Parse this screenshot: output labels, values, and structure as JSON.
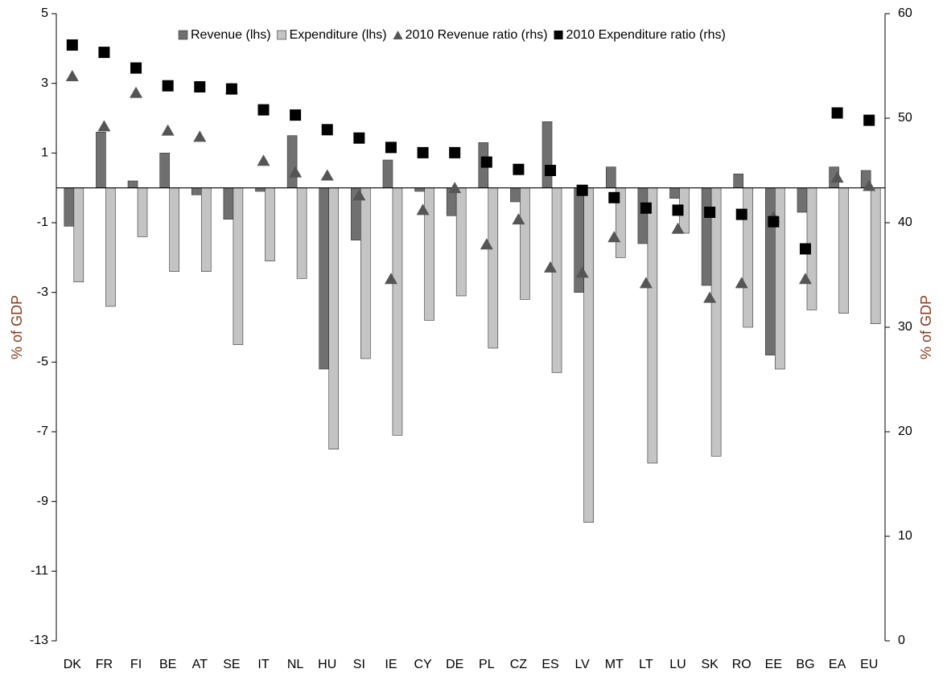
{
  "chart_data": {
    "type": "bar",
    "y_label": "% of GDP",
    "y2_label": "% of GDP",
    "categories": [
      "DK",
      "FR",
      "FI",
      "BE",
      "AT",
      "SE",
      "IT",
      "NL",
      "HU",
      "SI",
      "IE",
      "CY",
      "DE",
      "PL",
      "CZ",
      "ES",
      "LV",
      "MT",
      "LT",
      "LU",
      "SK",
      "RO",
      "EE",
      "BG",
      "EA",
      "EU"
    ],
    "series": [
      {
        "name": "Revenue (lhs)",
        "type": "bar",
        "color": "#707070",
        "values": [
          -1.1,
          1.6,
          0.2,
          1.0,
          -0.2,
          -0.9,
          -0.1,
          1.5,
          -5.2,
          -1.5,
          0.8,
          -0.1,
          -0.8,
          1.3,
          -0.4,
          1.9,
          -3.0,
          0.6,
          -1.6,
          -0.3,
          -2.8,
          0.4,
          -4.8,
          -0.7,
          0.6,
          0.5
        ]
      },
      {
        "name": "Expenditure (lhs)",
        "type": "bar",
        "color": "#c4c4c4",
        "values": [
          -2.7,
          -3.4,
          -1.4,
          -2.4,
          -2.4,
          -4.5,
          -2.1,
          -2.6,
          -7.5,
          -4.9,
          -7.1,
          -3.8,
          -3.1,
          -4.6,
          -3.2,
          -5.3,
          -9.6,
          -2.0,
          -7.9,
          -1.3,
          -7.7,
          -4.0,
          -5.2,
          -3.5,
          -3.6,
          -3.9
        ]
      },
      {
        "name": "2010 Revenue ratio (rhs)",
        "type": "scatter",
        "marker": "triangle",
        "axis": "y2",
        "color": "#555555",
        "values": [
          54.0,
          49.2,
          52.4,
          48.8,
          48.2,
          52.8,
          45.9,
          44.8,
          44.5,
          42.6,
          34.6,
          41.2,
          43.3,
          37.9,
          40.3,
          35.7,
          35.2,
          38.6,
          34.2,
          39.4,
          32.8,
          34.2,
          40.5,
          34.6,
          44.3,
          43.5
        ]
      },
      {
        "name": "2010 Expenditure ratio (rhs)",
        "type": "scatter",
        "marker": "square",
        "axis": "y2",
        "color": "#000000",
        "values": [
          57.0,
          56.3,
          54.8,
          53.1,
          53.0,
          52.8,
          50.8,
          50.3,
          48.9,
          48.1,
          47.2,
          46.7,
          46.7,
          45.8,
          45.1,
          45.0,
          43.1,
          42.4,
          41.4,
          41.2,
          41.0,
          40.8,
          40.1,
          37.5,
          50.5,
          49.8
        ]
      }
    ],
    "ylim": [
      -13,
      5
    ],
    "yticks": [
      -13,
      -11,
      -9,
      -7,
      -5,
      -3,
      -1,
      1,
      3,
      5
    ],
    "y2lim": [
      0,
      60
    ],
    "y2ticks": [
      0,
      10,
      20,
      30,
      40,
      50,
      60
    ],
    "grid": false,
    "legend": "top"
  }
}
